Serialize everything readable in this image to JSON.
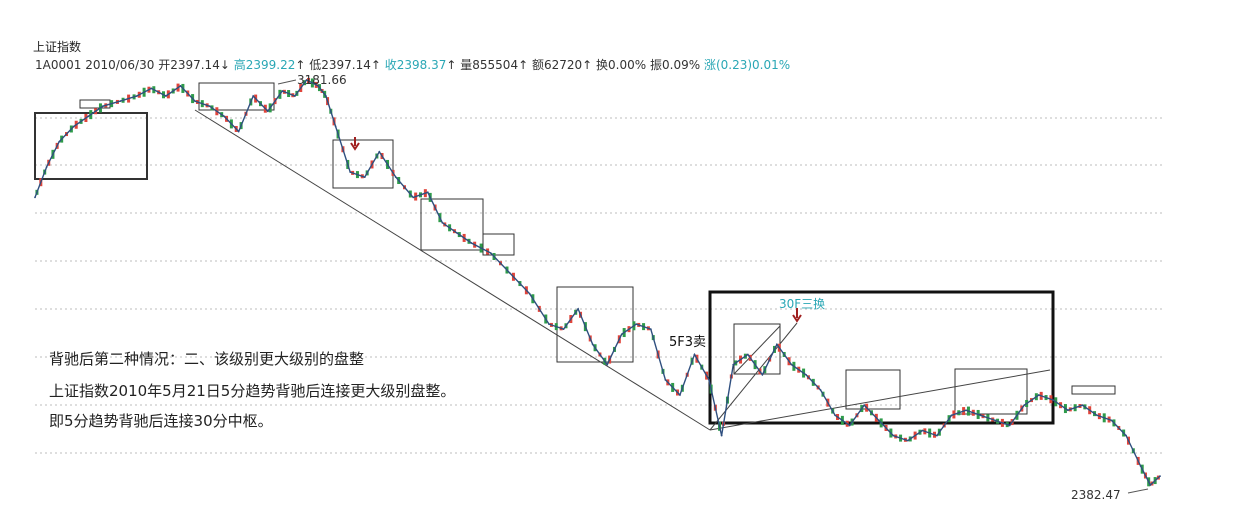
{
  "header": {
    "title": "上证指数",
    "code_date": "1A0001 2010/06/30",
    "open": "开2397.14",
    "high": "高2399.22",
    "low": "低2397.14",
    "close": "收2398.37",
    "volume": "量855504",
    "amount": "额62720",
    "turnover": "换0.00%",
    "amplitude": "振0.09%",
    "change": "涨(0.23)0.01%",
    "arrow_down": "↓",
    "arrow_up": "↑"
  },
  "annotation": {
    "line1": "背驰后第二种情况：二、该级别更大级别的盘整",
    "line2": "上证指数2010年5月21日5分趋势背驰后连接更大级别盘整。",
    "line3": "即5分趋势背驰后连接30分中枢。",
    "signal_5f": "5F3卖",
    "signal_30f": "30F三换"
  },
  "chart_data": {
    "type": "line",
    "title": "上证指数",
    "xlabel": "",
    "ylabel": "",
    "series": [
      {
        "name": "",
        "x_index": [
          0,
          12,
          25,
          40,
          55,
          70,
          88,
          105,
          120,
          135,
          150,
          165,
          180,
          195,
          210,
          225,
          240,
          255,
          268,
          280,
          292,
          300,
          310,
          325,
          340,
          355,
          372,
          390,
          405,
          420,
          435,
          450,
          470,
          490,
          510,
          530,
          545,
          560,
          575,
          590,
          605,
          620,
          635,
          650,
          665,
          680,
          695,
          708,
          720,
          735,
          750,
          765,
          780,
          795,
          810,
          825,
          840,
          855,
          870,
          885,
          900,
          915,
          930,
          945,
          960,
          975,
          990,
          1005,
          1020,
          1035,
          1050,
          1065,
          1080,
          1095,
          1110,
          1125,
          1140,
          1150,
          1160
        ],
        "values": [
          2950,
          3010,
          3060,
          3090,
          3110,
          3130,
          3140,
          3150,
          3165,
          3150,
          3170,
          3140,
          3130,
          3110,
          3080,
          3150,
          3120,
          3160,
          3150,
          3181.66,
          3170,
          3150,
          3090,
          3000,
          2990,
          3040,
          2990,
          2950,
          2960,
          2900,
          2880,
          2860,
          2840,
          2800,
          2760,
          2700,
          2690,
          2730,
          2660,
          2620,
          2680,
          2700,
          2690,
          2590,
          2560,
          2640,
          2590,
          2480,
          2620,
          2640,
          2600,
          2660,
          2620,
          2600,
          2570,
          2520,
          2500,
          2540,
          2510,
          2480,
          2470,
          2490,
          2480,
          2520,
          2530,
          2520,
          2510,
          2500,
          2540,
          2560,
          2550,
          2530,
          2540,
          2520,
          2510,
          2480,
          2420,
          2382.47,
          2400
        ]
      }
    ],
    "annotations": [
      "3181.66",
      "2382.47"
    ],
    "grid": true,
    "ylim": [
      2382.47,
      3181.66
    ]
  },
  "colors": {
    "price_line": "#2f4f7f",
    "up_candle": "#e0443a",
    "down_candle": "#2e9b4a",
    "pivot_box": "#333333",
    "trendline": "#444444",
    "grid": "#bdbdbd"
  }
}
